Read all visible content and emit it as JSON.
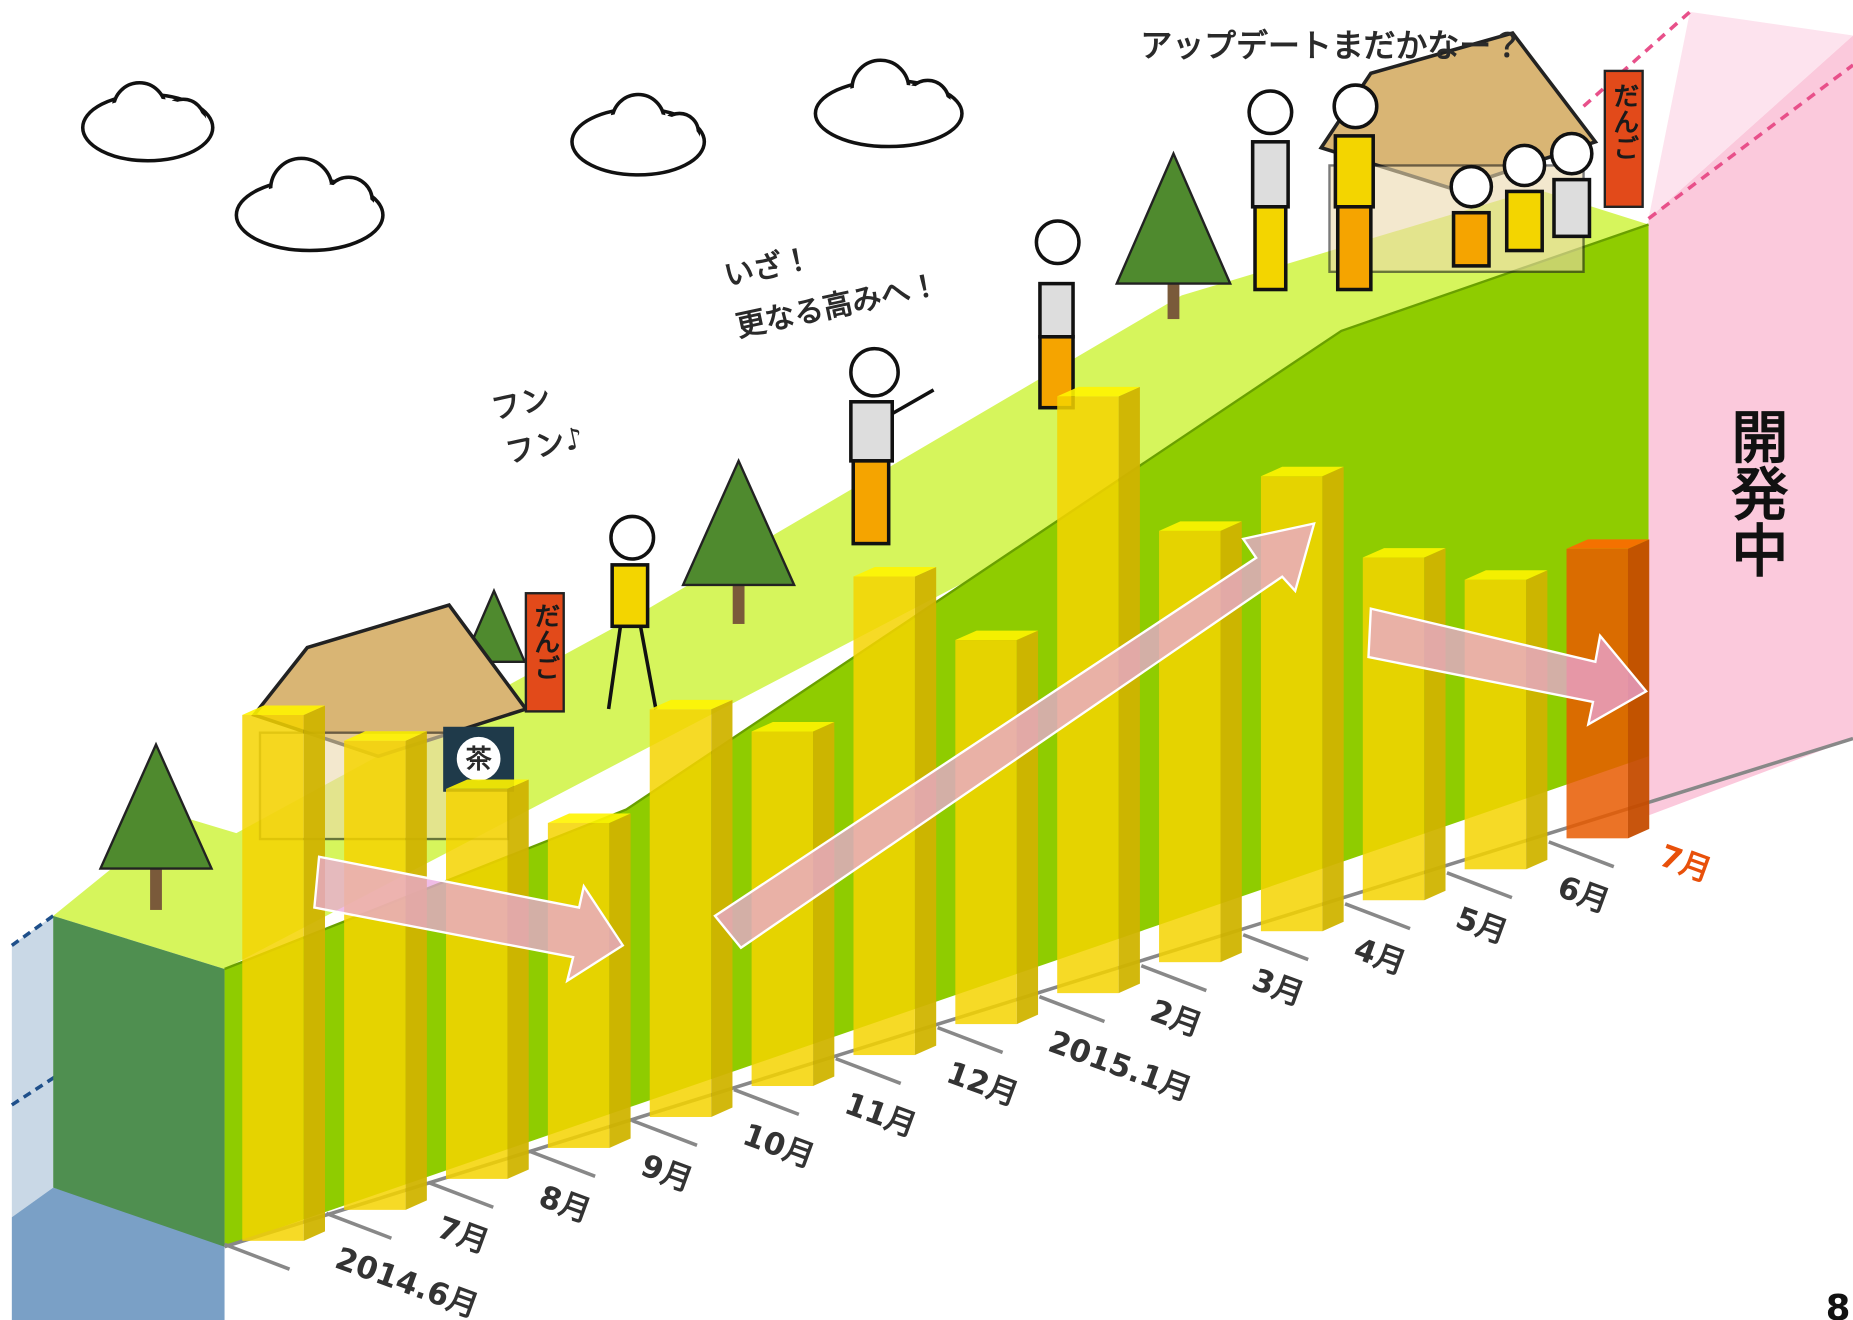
{
  "chart_data": {
    "type": "bar",
    "categories": [
      "2014.6月",
      "7月",
      "8月",
      "9月",
      "10月",
      "11月",
      "12月",
      "2015.1月",
      "2月",
      "3月",
      "4月",
      "5月",
      "6月",
      "7月"
    ],
    "values": [
      445,
      397,
      330,
      275,
      345,
      300,
      405,
      325,
      505,
      365,
      385,
      290,
      245,
      245
    ],
    "colors": [
      "#f4d400",
      "#f4d400",
      "#f4d400",
      "#f4d400",
      "#f4d400",
      "#f4d400",
      "#f4d400",
      "#f4d400",
      "#f4d400",
      "#f4d400",
      "#f4d400",
      "#f4d400",
      "#f4d400",
      "#e85a00"
    ],
    "label_colors": [
      "#333333",
      "#333333",
      "#333333",
      "#333333",
      "#333333",
      "#333333",
      "#333333",
      "#333333",
      "#333333",
      "#333333",
      "#333333",
      "#333333",
      "#333333",
      "#e8500a"
    ],
    "annotations": [
      "アップデートまだかなー？",
      "いざ！",
      "更なる高みへ！",
      "フン",
      "フン♪",
      "開発中"
    ],
    "signs": [
      "だんご",
      "だんご",
      "茶"
    ],
    "page_number": "8"
  }
}
